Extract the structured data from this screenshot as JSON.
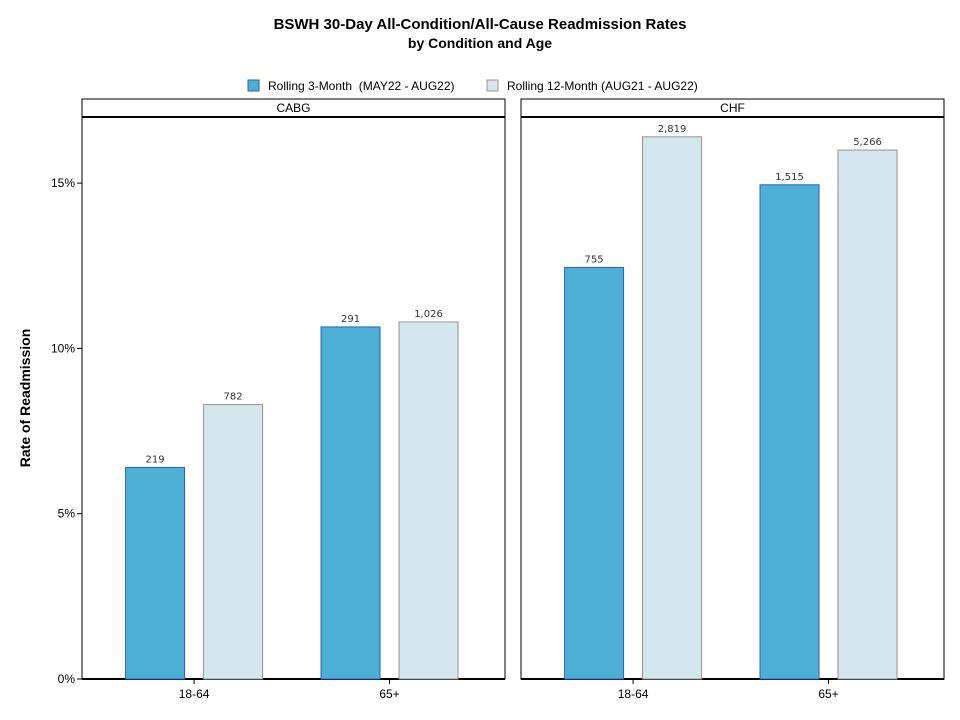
{
  "chart_data": {
    "type": "bar",
    "title": "BSWH 30-Day All-Condition/All-Cause Readmission Rates",
    "subtitle": "by Condition and Age",
    "ylabel": "Rate of Readmission",
    "xlabel": "",
    "ylim": [
      0,
      0.17
    ],
    "y_ticks": [
      {
        "value": 0,
        "label": "0%"
      },
      {
        "value": 0.05,
        "label": "5%"
      },
      {
        "value": 0.1,
        "label": "10%"
      },
      {
        "value": 0.15,
        "label": "15%"
      }
    ],
    "grid": false,
    "legend_position": "top",
    "series": [
      {
        "name": "Rolling 3-Month  (MAY22 - AUG22)",
        "color": "#4DAFD3",
        "stroke": "#2E5FBF"
      },
      {
        "name": "Rolling 12-Month (AUG21 - AUG22)",
        "color": "#D5E7EE",
        "stroke": "#9C9089"
      }
    ],
    "panels": [
      {
        "name": "CABG",
        "categories": [
          "18-64",
          "65+"
        ],
        "values": [
          [
            0.064,
            0.1065
          ],
          [
            0.083,
            0.108
          ]
        ],
        "labels": [
          [
            "219",
            "291"
          ],
          [
            "782",
            "1,026"
          ]
        ]
      },
      {
        "name": "CHF",
        "categories": [
          "18-64",
          "65+"
        ],
        "values": [
          [
            0.1245,
            0.1495
          ],
          [
            0.164,
            0.16
          ]
        ],
        "labels": [
          [
            "755",
            "1,515"
          ],
          [
            "2,819",
            "5,266"
          ]
        ]
      }
    ]
  }
}
